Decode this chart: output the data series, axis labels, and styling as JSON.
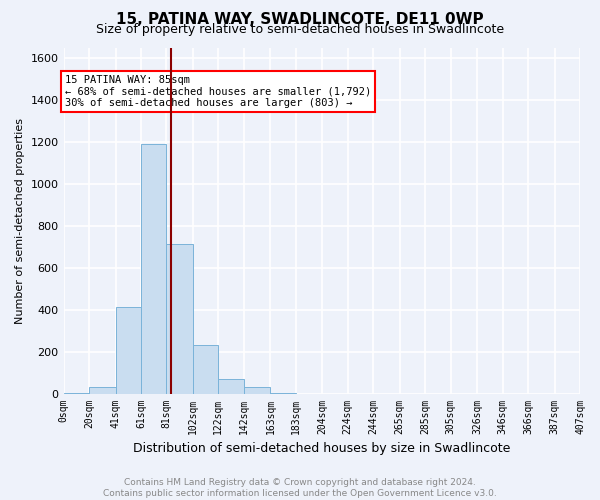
{
  "title": "15, PATINA WAY, SWADLINCOTE, DE11 0WP",
  "subtitle": "Size of property relative to semi-detached houses in Swadlincote",
  "xlabel": "Distribution of semi-detached houses by size in Swadlincote",
  "ylabel": "Number of semi-detached properties",
  "footer_line1": "Contains HM Land Registry data © Crown copyright and database right 2024.",
  "footer_line2": "Contains public sector information licensed under the Open Government Licence v3.0.",
  "annotation_line1": "15 PATINA WAY: 85sqm",
  "annotation_line2": "← 68% of semi-detached houses are smaller (1,792)",
  "annotation_line3": "30% of semi-detached houses are larger (803) →",
  "bar_color": "#c9ddf0",
  "bar_edge_color": "#7ab3d9",
  "vline_color": "#8b0000",
  "vline_x": 85,
  "bins": [
    0,
    20,
    41,
    61,
    81,
    102,
    122,
    142,
    163,
    183,
    204,
    224,
    244,
    265,
    285,
    305,
    326,
    346,
    366,
    387,
    407
  ],
  "counts": [
    5,
    30,
    415,
    1190,
    715,
    230,
    70,
    30,
    5,
    0,
    0,
    0,
    0,
    0,
    0,
    0,
    0,
    0,
    0,
    0
  ],
  "ylim": [
    0,
    1650
  ],
  "yticks": [
    0,
    200,
    400,
    600,
    800,
    1000,
    1200,
    1400,
    1600
  ],
  "background_color": "#eef2fa",
  "plot_bg_color": "#eef2fa",
  "grid_color": "#ffffff",
  "title_fontsize": 11,
  "subtitle_fontsize": 9,
  "ylabel_fontsize": 8,
  "xlabel_fontsize": 9,
  "footer_fontsize": 6.5,
  "annotation_fontsize": 7.5,
  "tick_fontsize": 7
}
